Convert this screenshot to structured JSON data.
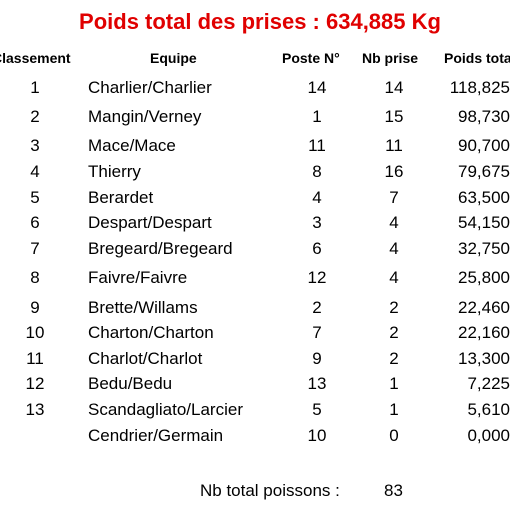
{
  "header": {
    "title": "Poids total des prises : 634,885 Kg"
  },
  "table": {
    "columns": [
      "Classement",
      "Equipe",
      "Poste N°",
      "Nb prise",
      "Poids total"
    ],
    "rows": [
      [
        "1",
        "Charlier/Charlier",
        "14",
        "14",
        "118,825"
      ],
      [
        "2",
        "Mangin/Verney",
        "1",
        "15",
        "98,730"
      ],
      [
        "3",
        "Mace/Mace",
        "11",
        "11",
        "90,700"
      ],
      [
        "4",
        "Thierry",
        "8",
        "16",
        "79,675"
      ],
      [
        "5",
        "Berardet",
        "4",
        "7",
        "63,500"
      ],
      [
        "6",
        "Despart/Despart",
        "3",
        "4",
        "54,150"
      ],
      [
        "7",
        "Bregeard/Bregeard",
        "6",
        "4",
        "32,750"
      ],
      [
        "8",
        "Faivre/Faivre",
        "12",
        "4",
        "25,800"
      ],
      [
        "9",
        "Brette/Willams",
        "2",
        "2",
        "22,460"
      ],
      [
        "10",
        "Charton/Charton",
        "7",
        "2",
        "22,160"
      ],
      [
        "11",
        "Charlot/Charlot",
        "9",
        "2",
        "13,300"
      ],
      [
        "12",
        "Bedu/Bedu",
        "13",
        "1",
        "7,225"
      ],
      [
        "13",
        "Scandagliato/Larcier",
        "5",
        "1",
        "5,610"
      ],
      [
        "",
        "Cendrier/Germain",
        "10",
        "0",
        "0,000"
      ]
    ]
  },
  "footer": {
    "label": "Nb total poissons :",
    "value": "83"
  }
}
